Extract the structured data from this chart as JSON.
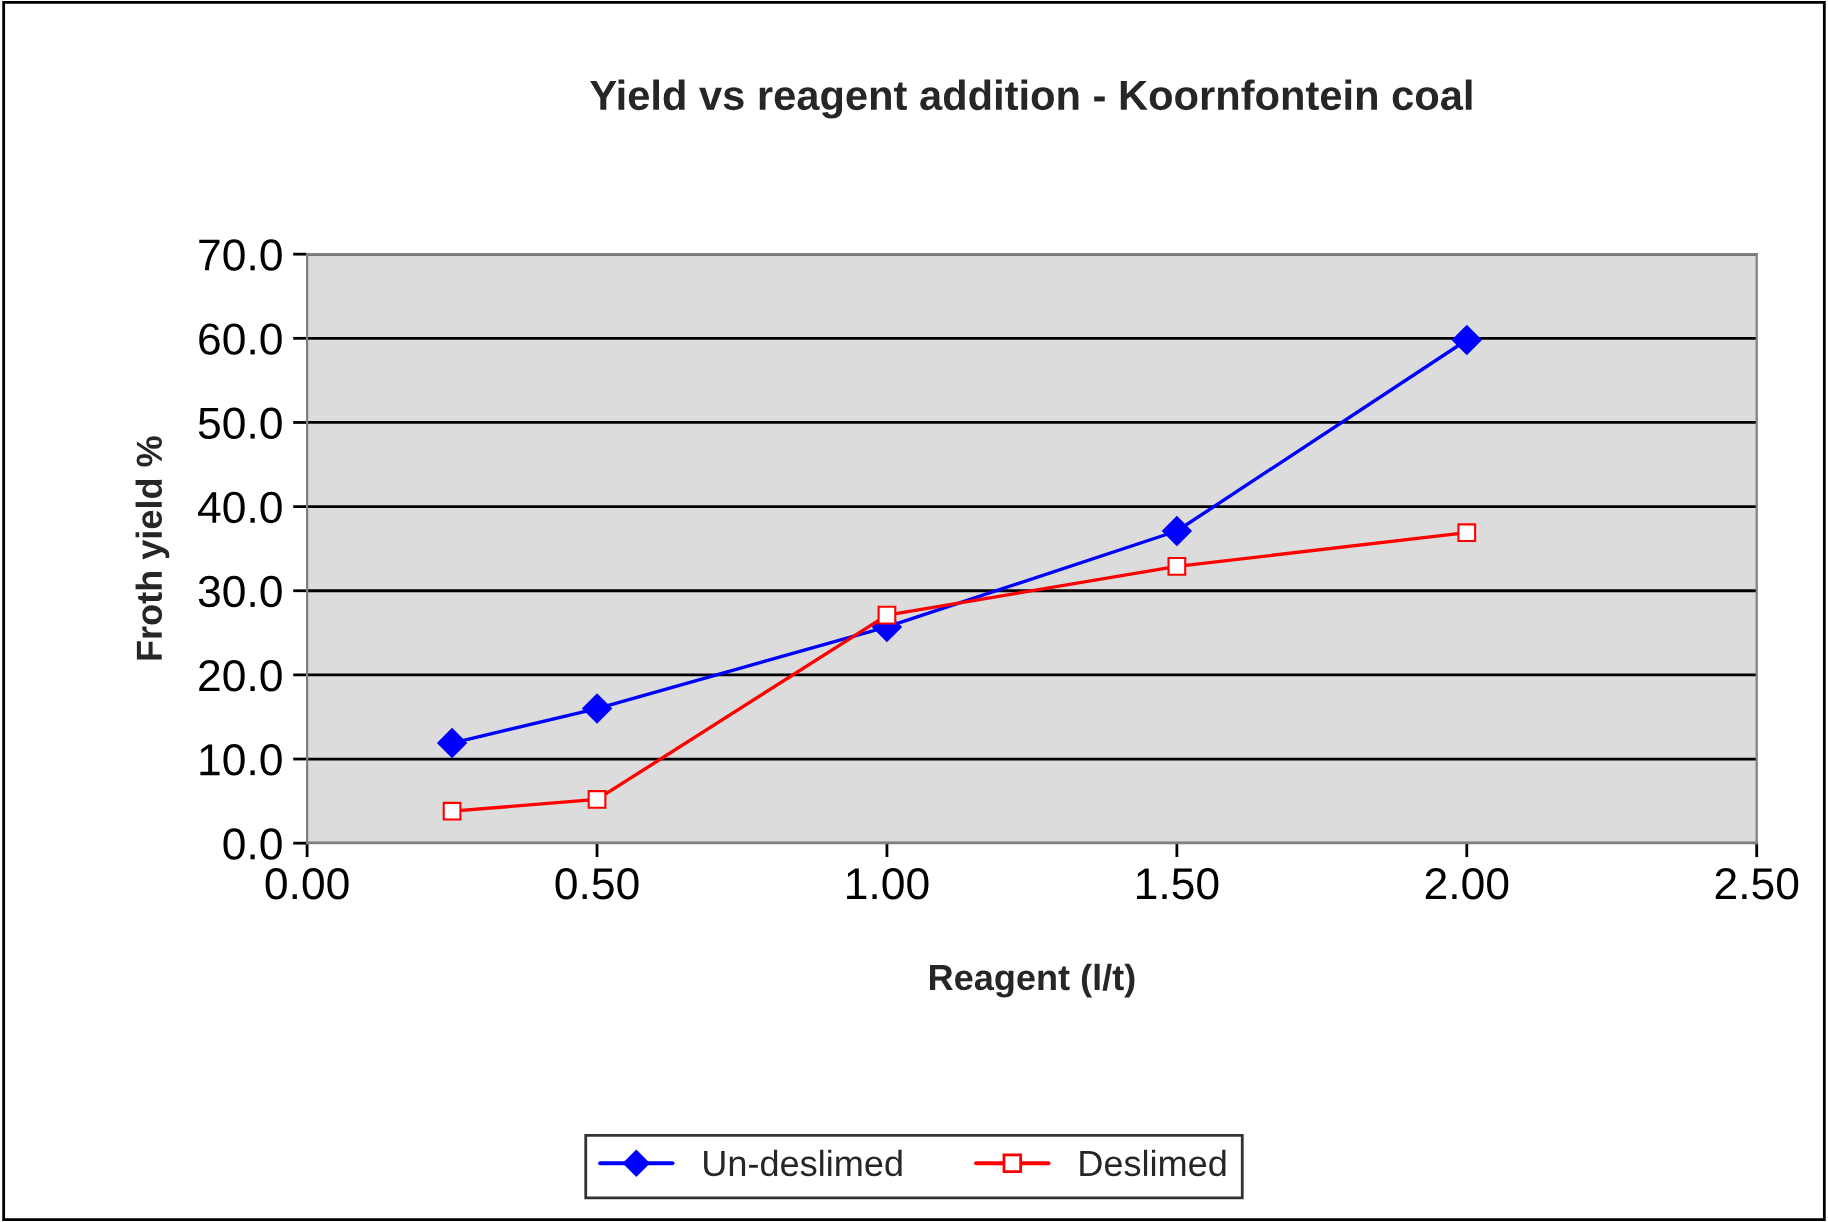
{
  "chart_data": {
    "type": "line",
    "title": "Yield vs reagent addition - Koornfontein coal",
    "xlabel": "Reagent (l/t)",
    "ylabel": "Froth yield %",
    "x": [
      0.25,
      0.5,
      1.0,
      1.5,
      2.0
    ],
    "series": [
      {
        "name": "Un-deslimed",
        "color": "#0000ff",
        "marker": "diamond",
        "values": [
          11.9,
          16.0,
          25.7,
          37.1,
          59.8
        ]
      },
      {
        "name": "Deslimed",
        "color": "#ff0000",
        "marker": "square",
        "values": [
          3.8,
          5.2,
          27.1,
          32.9,
          36.9
        ]
      }
    ],
    "xlim": [
      0,
      2.5
    ],
    "xticks": [
      {
        "value": 0,
        "label": "0.00"
      },
      {
        "value": 0.5,
        "label": "0.50"
      },
      {
        "value": 1,
        "label": "1.00"
      },
      {
        "value": 1.5,
        "label": "1.50"
      },
      {
        "value": 2,
        "label": "2.00"
      },
      {
        "value": 2.5,
        "label": "2.50"
      }
    ],
    "ylim": [
      0,
      70
    ],
    "yticks": [
      {
        "value": 0,
        "label": "0.0"
      },
      {
        "value": 10,
        "label": "10.0"
      },
      {
        "value": 20,
        "label": "20.0"
      },
      {
        "value": 30,
        "label": "30.0"
      },
      {
        "value": 40,
        "label": "40.0"
      },
      {
        "value": 50,
        "label": "50.0"
      },
      {
        "value": 60,
        "label": "60.0"
      },
      {
        "value": 70,
        "label": "70.0"
      }
    ],
    "grid": "y",
    "legend": "bottom",
    "line_style": "solid"
  }
}
